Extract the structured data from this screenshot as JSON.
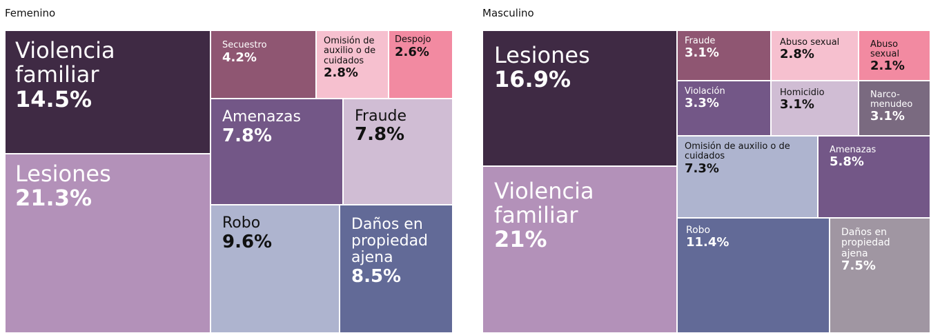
{
  "chart_data": [
    {
      "type": "treemap",
      "title": "Femenino",
      "categories": [
        "Violencia familiar",
        "Lesiones",
        "Secuestro",
        "Omisión de auxilio o de cuidados",
        "Despojo",
        "Amenazas",
        "Fraude",
        "Robo",
        "Daños en propiedad ajena"
      ],
      "values": [
        14.5,
        21.3,
        4.2,
        2.8,
        2.6,
        7.8,
        7.8,
        9.6,
        8.5
      ],
      "value_labels": [
        "14.5%",
        "21.3%",
        "4.2%",
        "2.8%",
        "2.6%",
        "7.8%",
        "7.8%",
        "9.6%",
        "8.5%"
      ],
      "colors": [
        "#3f2a44",
        "#b391b9",
        "#8f5672",
        "#f6c0cf",
        "#f28aa1",
        "#735787",
        "#d0bdd4",
        "#aeb4cf",
        "#626a97"
      ]
    },
    {
      "type": "treemap",
      "title": "Masculino",
      "categories": [
        "Lesiones",
        "Violencia familiar",
        "Fraude",
        "Abuso sexual",
        "Abuso sexual",
        "Violación",
        "Homicidio",
        "Narco-menudeo",
        "Omisión de auxilio o de cuidados",
        "Amenazas",
        "Robo",
        "Daños en propiedad ajena"
      ],
      "values": [
        16.9,
        21,
        3.1,
        2.8,
        2.1,
        3.3,
        3.1,
        3.1,
        7.3,
        5.8,
        11.4,
        7.5
      ],
      "value_labels": [
        "16.9%",
        "21%",
        "3.1%",
        "2.8%",
        "2.1%",
        "3.3%",
        "3.1%",
        "3.1%",
        "7.3%",
        "5.8%",
        "11.4%",
        "7.5%"
      ],
      "colors": [
        "#3f2a44",
        "#b391b9",
        "#8f5672",
        "#f6c0cf",
        "#f28aa1",
        "#735787",
        "#d0bdd4",
        "#7a6a80",
        "#aeb4cf",
        "#735787",
        "#626a97",
        "#a096a2"
      ]
    }
  ]
}
